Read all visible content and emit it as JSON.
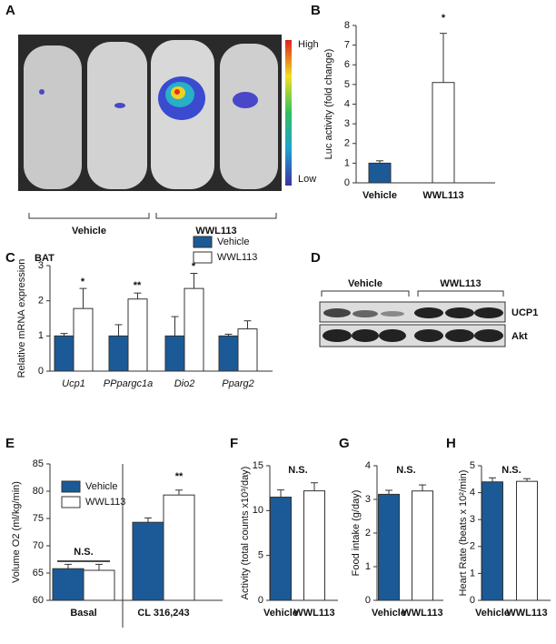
{
  "figure": {
    "panel_labels": [
      "A",
      "B",
      "C",
      "D",
      "E",
      "F",
      "G",
      "H"
    ],
    "panel_a": {
      "high": "High",
      "low": "Low",
      "groups": [
        "Vehicle",
        "WWL113"
      ]
    },
    "panel_d": {
      "groups": [
        "Vehicle",
        "WWL113"
      ],
      "bands": [
        "UCP1",
        "Akt"
      ]
    }
  },
  "chart_data": [
    {
      "type": "bar",
      "ylabel": "Luc activity (fold change)",
      "categories": [
        "Vehicle",
        "WWL113"
      ],
      "values": [
        1.0,
        5.1
      ],
      "errors": [
        0.12,
        2.5
      ],
      "colors": [
        "#1b5a96",
        "#ffffff"
      ],
      "ylim": [
        0,
        8
      ],
      "yticks": [
        0,
        1,
        2,
        3,
        4,
        5,
        6,
        7,
        8
      ],
      "annotations": [
        "*"
      ]
    },
    {
      "type": "bar",
      "title": "BAT",
      "ylabel": "Relative mRNA expression",
      "categories": [
        "Ucp1",
        "PPpargc1a",
        "Dio2",
        "Pparg2"
      ],
      "series": [
        {
          "name": "Vehicle",
          "color": "#1b5a96",
          "values": [
            1,
            1,
            1,
            1
          ],
          "errors": [
            0.07,
            0.32,
            0.55,
            0.05
          ]
        },
        {
          "name": "WWL113",
          "color": "#ffffff",
          "values": [
            1.78,
            2.05,
            2.35,
            1.2
          ],
          "errors": [
            0.57,
            0.17,
            0.43,
            0.23
          ]
        }
      ],
      "ylim": [
        0,
        3
      ],
      "yticks": [
        0,
        1,
        2,
        3
      ],
      "legend": true,
      "annotations": [
        "*",
        "**",
        "*"
      ]
    },
    {
      "type": "bar",
      "ylabel": "Volume O2 (ml/kg/min)",
      "categories": [
        "Basal",
        "CL 316,243"
      ],
      "series": [
        {
          "name": "Vehicle",
          "color": "#1b5a96",
          "values": [
            65.8,
            74.3
          ],
          "errors": [
            0.8,
            0.8
          ]
        },
        {
          "name": "WWL113",
          "color": "#ffffff",
          "values": [
            65.5,
            79.3
          ],
          "errors": [
            1.1,
            0.9
          ]
        }
      ],
      "ylim": [
        60,
        85
      ],
      "yticks": [
        60,
        65,
        70,
        75,
        80,
        85
      ],
      "legend": true,
      "annotations": [
        "N.S.",
        "**"
      ]
    },
    {
      "type": "bar",
      "ylabel": "Activity (total counts x10³/day)",
      "categories": [
        "Vehicle",
        "WWL113"
      ],
      "values": [
        11.5,
        12.2
      ],
      "errors": [
        0.8,
        0.9
      ],
      "colors": [
        "#1b5a96",
        "#ffffff"
      ],
      "ylim": [
        0,
        15
      ],
      "yticks": [
        0,
        5,
        10,
        15
      ],
      "annotations": [
        "N.S."
      ]
    },
    {
      "type": "bar",
      "ylabel": "Food intake (g/day)",
      "categories": [
        "Vehicle",
        "WWL113"
      ],
      "values": [
        3.15,
        3.25
      ],
      "errors": [
        0.12,
        0.18
      ],
      "colors": [
        "#1b5a96",
        "#ffffff"
      ],
      "ylim": [
        0,
        4
      ],
      "yticks": [
        0,
        1,
        2,
        3,
        4
      ],
      "annotations": [
        "N.S."
      ]
    },
    {
      "type": "bar",
      "ylabel": "Heart Rate (beats x 10²/min)",
      "categories": [
        "Vehicle",
        "WWL113"
      ],
      "values": [
        4.4,
        4.42
      ],
      "errors": [
        0.15,
        0.1
      ],
      "colors": [
        "#1b5a96",
        "#ffffff"
      ],
      "ylim": [
        0,
        5
      ],
      "yticks": [
        0,
        1,
        2,
        3,
        4,
        5
      ],
      "annotations": [
        "N.S."
      ]
    }
  ]
}
